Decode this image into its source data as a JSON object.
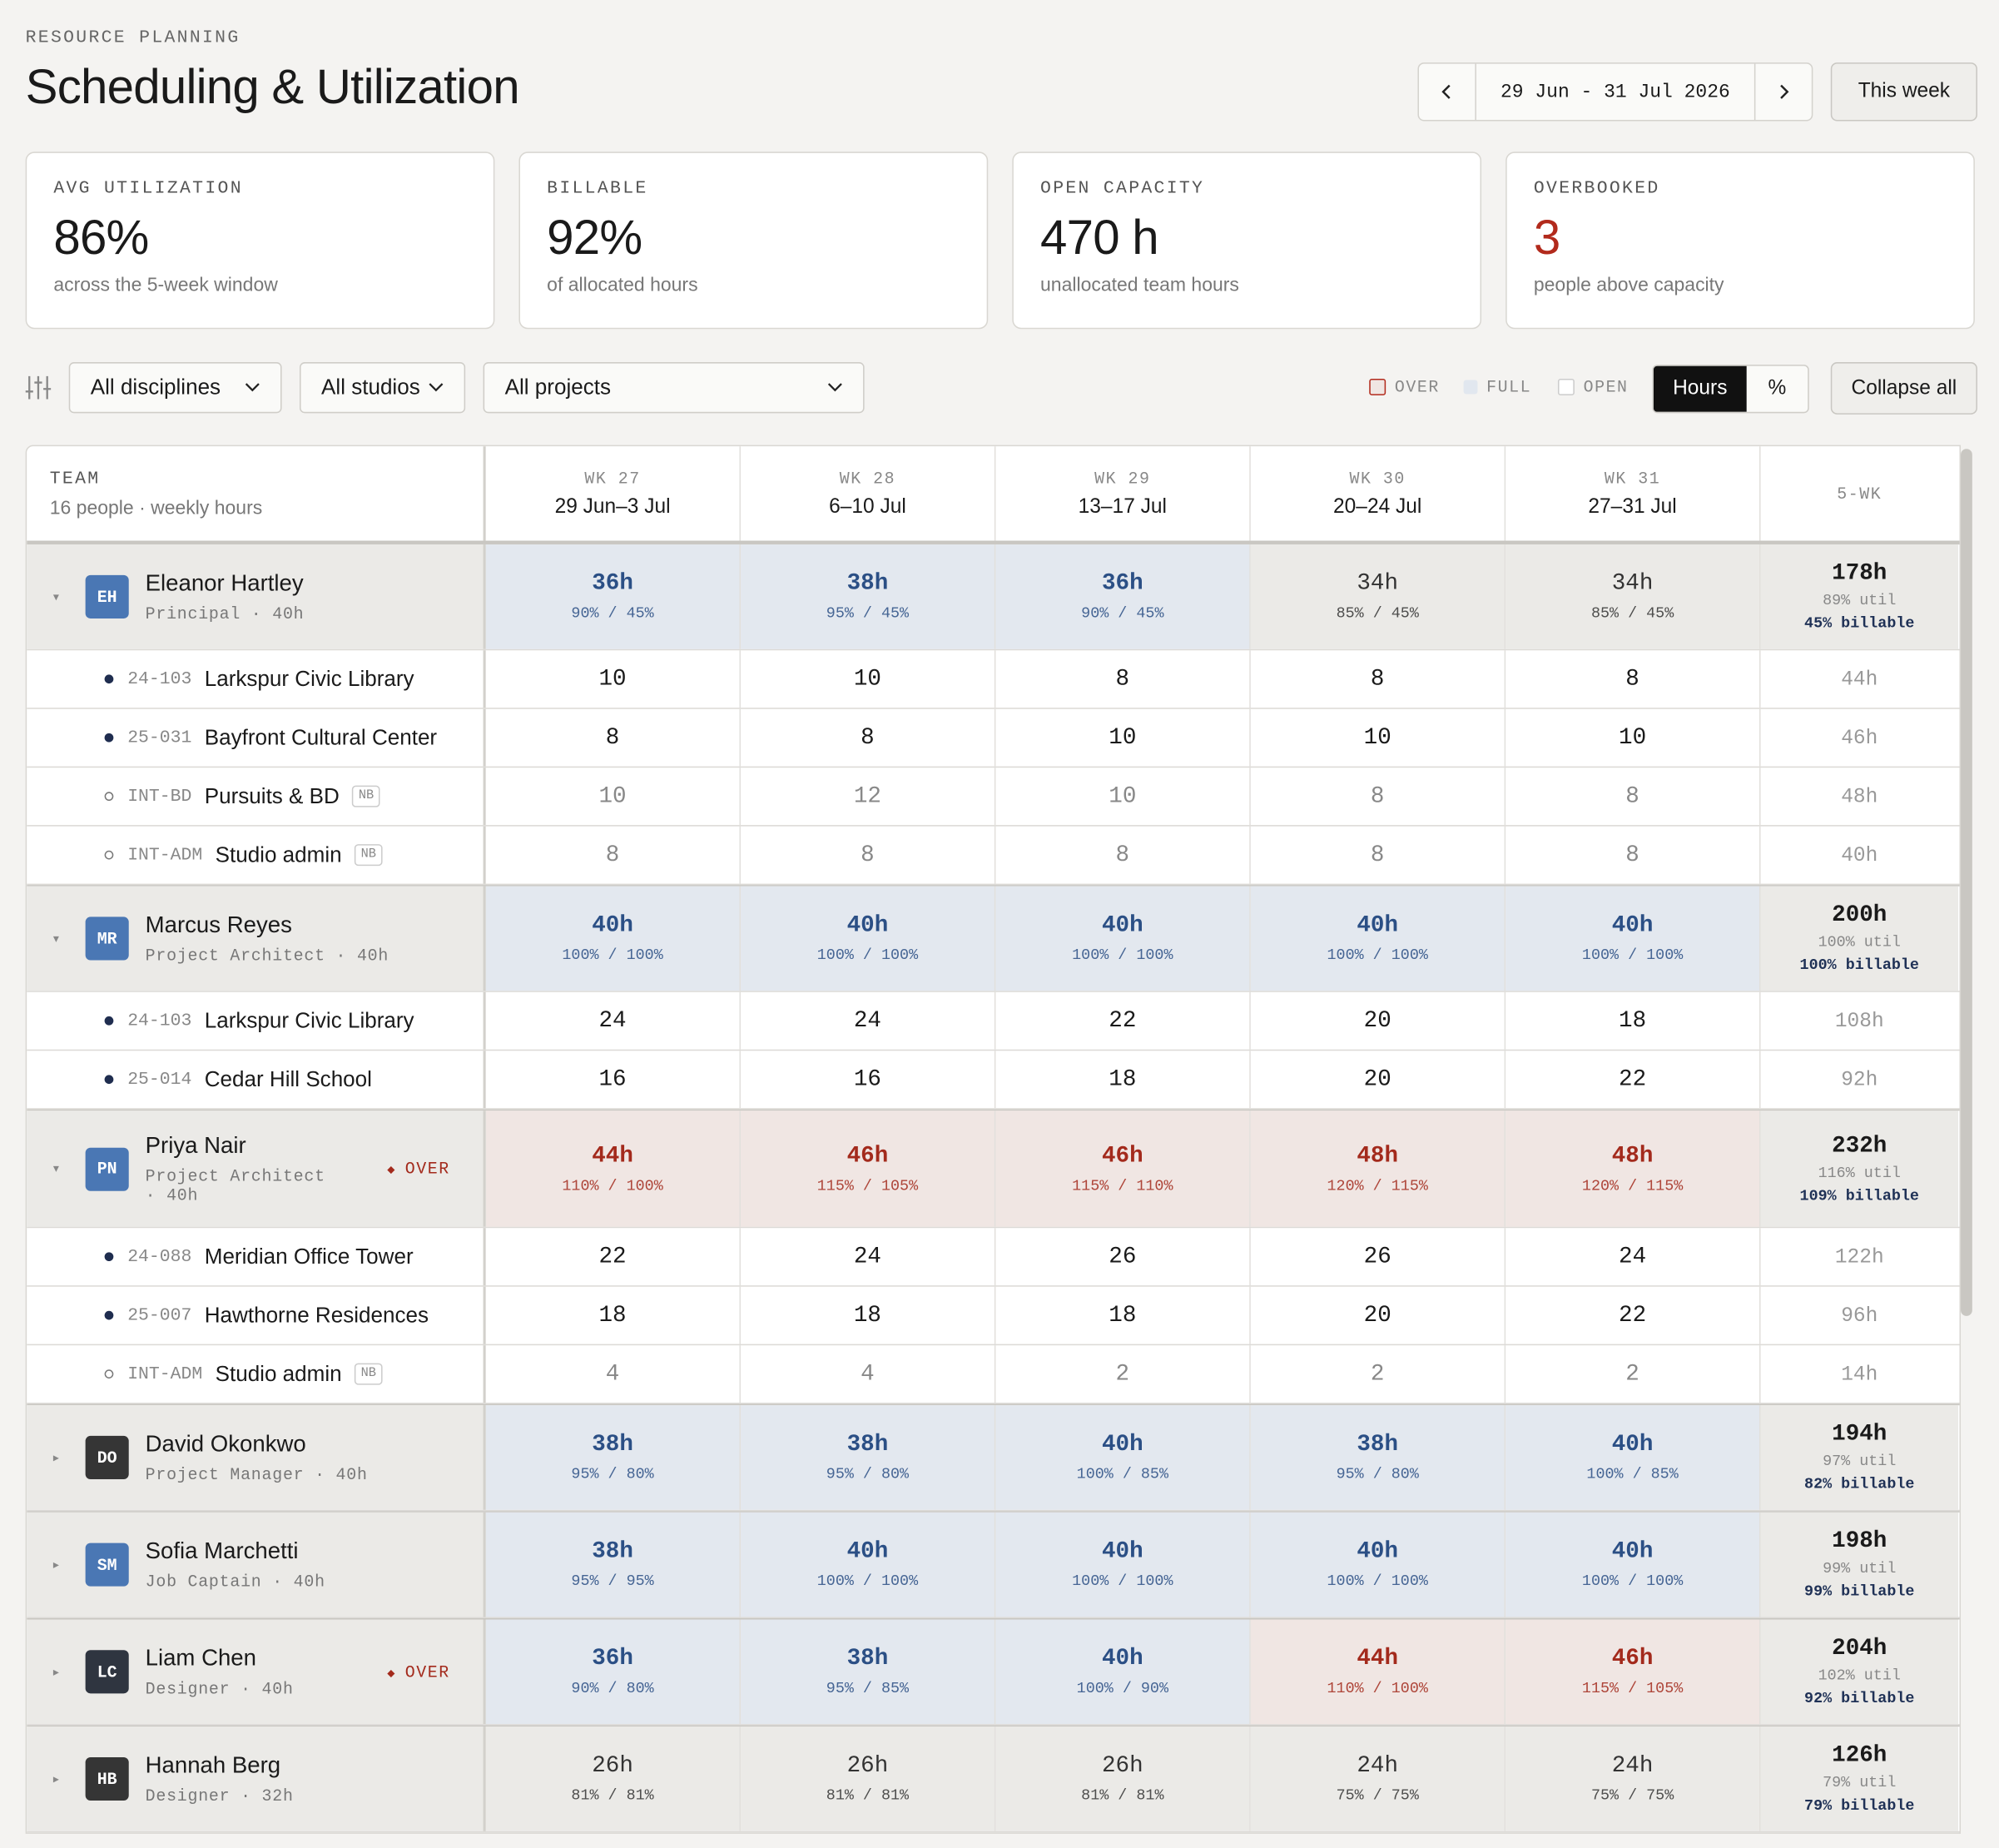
{
  "header": {
    "eyebrow": "RESOURCE PLANNING",
    "title": "Scheduling & Utilization",
    "range": "29 Jun - 31 Jul 2026",
    "this_week": "This week"
  },
  "kpis": [
    {
      "label": "AVG UTILIZATION",
      "value": "86%",
      "note": "across the 5-week window",
      "alert": false
    },
    {
      "label": "BILLABLE",
      "value": "92%",
      "note": "of allocated hours",
      "alert": false
    },
    {
      "label": "OPEN CAPACITY",
      "value": "470 h",
      "note": "unallocated team hours",
      "alert": false
    },
    {
      "label": "OVERBOOKED",
      "value": "3",
      "note": "people above capacity",
      "alert": true
    }
  ],
  "filters": {
    "disciplines": "All disciplines",
    "studios": "All studios",
    "projects": "All projects",
    "legend": [
      "OVER",
      "FULL",
      "OPEN"
    ],
    "toggle": [
      "Hours",
      "%"
    ],
    "active_toggle": 0,
    "collapse": "Collapse all"
  },
  "table": {
    "team_label": "TEAM",
    "team_sub": "16 people · weekly hours",
    "total_label": "5-WK",
    "weeks": [
      {
        "wk": "WK 27",
        "dates": "29 Jun–3 Jul"
      },
      {
        "wk": "WK 28",
        "dates": "6–10 Jul"
      },
      {
        "wk": "WK 29",
        "dates": "13–17 Jul"
      },
      {
        "wk": "WK 30",
        "dates": "20–24 Jul"
      },
      {
        "wk": "WK 31",
        "dates": "27–31 Jul"
      }
    ],
    "people": [
      {
        "initials": "EH",
        "avatar": "#4a77b4",
        "name": "Eleanor Hartley",
        "role": "Principal · 40h",
        "expanded": true,
        "weeks": [
          {
            "hours": "36h",
            "pct": "90% / 45%",
            "status": "full"
          },
          {
            "hours": "38h",
            "pct": "95% / 45%",
            "status": "full"
          },
          {
            "hours": "36h",
            "pct": "90% / 45%",
            "status": "full"
          },
          {
            "hours": "34h",
            "pct": "85% / 45%",
            "status": "open"
          },
          {
            "hours": "34h",
            "pct": "85% / 45%",
            "status": "open"
          }
        ],
        "total": {
          "hours": "178h",
          "util": "89% util",
          "billable": "45% billable"
        },
        "projects": [
          {
            "code": "24-103",
            "name": "Larkspur Civic Library",
            "billable": true,
            "hours": [
              "10",
              "10",
              "8",
              "8",
              "8"
            ],
            "total": "44h"
          },
          {
            "code": "25-031",
            "name": "Bayfront Cultural Center",
            "billable": true,
            "hours": [
              "8",
              "8",
              "10",
              "10",
              "10"
            ],
            "total": "46h"
          },
          {
            "code": "INT-BD",
            "name": "Pursuits & BD",
            "tag": "NB",
            "billable": false,
            "hours": [
              "10",
              "12",
              "10",
              "8",
              "8"
            ],
            "total": "48h"
          },
          {
            "code": "INT-ADM",
            "name": "Studio admin",
            "tag": "NB",
            "billable": false,
            "hours": [
              "8",
              "8",
              "8",
              "8",
              "8"
            ],
            "total": "40h"
          }
        ]
      },
      {
        "initials": "MR",
        "avatar": "#4a77b4",
        "name": "Marcus Reyes",
        "role": "Project Architect · 40h",
        "expanded": true,
        "weeks": [
          {
            "hours": "40h",
            "pct": "100% / 100%",
            "status": "full"
          },
          {
            "hours": "40h",
            "pct": "100% / 100%",
            "status": "full"
          },
          {
            "hours": "40h",
            "pct": "100% / 100%",
            "status": "full"
          },
          {
            "hours": "40h",
            "pct": "100% / 100%",
            "status": "full"
          },
          {
            "hours": "40h",
            "pct": "100% / 100%",
            "status": "full"
          }
        ],
        "total": {
          "hours": "200h",
          "util": "100% util",
          "billable": "100% billable"
        },
        "projects": [
          {
            "code": "24-103",
            "name": "Larkspur Civic Library",
            "billable": true,
            "hours": [
              "24",
              "24",
              "22",
              "20",
              "18"
            ],
            "total": "108h"
          },
          {
            "code": "25-014",
            "name": "Cedar Hill School",
            "billable": true,
            "hours": [
              "16",
              "16",
              "18",
              "20",
              "22"
            ],
            "total": "92h"
          }
        ]
      },
      {
        "initials": "PN",
        "avatar": "#4a77b4",
        "name": "Priya Nair",
        "role": "Project Architect · 40h",
        "flag": "OVER",
        "expanded": true,
        "weeks": [
          {
            "hours": "44h",
            "pct": "110% / 100%",
            "status": "over"
          },
          {
            "hours": "46h",
            "pct": "115% / 105%",
            "status": "over"
          },
          {
            "hours": "46h",
            "pct": "115% / 110%",
            "status": "over"
          },
          {
            "hours": "48h",
            "pct": "120% / 115%",
            "status": "over"
          },
          {
            "hours": "48h",
            "pct": "120% / 115%",
            "status": "over"
          }
        ],
        "total": {
          "hours": "232h",
          "util": "116% util",
          "billable": "109% billable"
        },
        "projects": [
          {
            "code": "24-088",
            "name": "Meridian Office Tower",
            "billable": true,
            "hours": [
              "22",
              "24",
              "26",
              "26",
              "24"
            ],
            "total": "122h"
          },
          {
            "code": "25-007",
            "name": "Hawthorne Residences",
            "billable": true,
            "hours": [
              "18",
              "18",
              "18",
              "20",
              "22"
            ],
            "total": "96h"
          },
          {
            "code": "INT-ADM",
            "name": "Studio admin",
            "tag": "NB",
            "billable": false,
            "hours": [
              "4",
              "4",
              "2",
              "2",
              "2"
            ],
            "total": "14h"
          }
        ]
      },
      {
        "initials": "DO",
        "avatar": "#353535",
        "name": "David Okonkwo",
        "role": "Project Manager · 40h",
        "expanded": false,
        "weeks": [
          {
            "hours": "38h",
            "pct": "95% / 80%",
            "status": "full"
          },
          {
            "hours": "38h",
            "pct": "95% / 80%",
            "status": "full"
          },
          {
            "hours": "40h",
            "pct": "100% / 85%",
            "status": "full"
          },
          {
            "hours": "38h",
            "pct": "95% / 80%",
            "status": "full"
          },
          {
            "hours": "40h",
            "pct": "100% / 85%",
            "status": "full"
          }
        ],
        "total": {
          "hours": "194h",
          "util": "97% util",
          "billable": "82% billable"
        }
      },
      {
        "initials": "SM",
        "avatar": "#4a77b4",
        "name": "Sofia Marchetti",
        "role": "Job Captain · 40h",
        "expanded": false,
        "weeks": [
          {
            "hours": "38h",
            "pct": "95% / 95%",
            "status": "full"
          },
          {
            "hours": "40h",
            "pct": "100% / 100%",
            "status": "full"
          },
          {
            "hours": "40h",
            "pct": "100% / 100%",
            "status": "full"
          },
          {
            "hours": "40h",
            "pct": "100% / 100%",
            "status": "full"
          },
          {
            "hours": "40h",
            "pct": "100% / 100%",
            "status": "full"
          }
        ],
        "total": {
          "hours": "198h",
          "util": "99% util",
          "billable": "99% billable"
        }
      },
      {
        "initials": "LC",
        "avatar": "#2f3540",
        "name": "Liam Chen",
        "role": "Designer · 40h",
        "flag": "OVER",
        "expanded": false,
        "weeks": [
          {
            "hours": "36h",
            "pct": "90% / 80%",
            "status": "full"
          },
          {
            "hours": "38h",
            "pct": "95% / 85%",
            "status": "full"
          },
          {
            "hours": "40h",
            "pct": "100% / 90%",
            "status": "full"
          },
          {
            "hours": "44h",
            "pct": "110% / 100%",
            "status": "over"
          },
          {
            "hours": "46h",
            "pct": "115% / 105%",
            "status": "over"
          }
        ],
        "total": {
          "hours": "204h",
          "util": "102% util",
          "billable": "92% billable"
        }
      },
      {
        "initials": "HB",
        "avatar": "#353535",
        "name": "Hannah Berg",
        "role": "Designer · 32h",
        "expanded": false,
        "weeks": [
          {
            "hours": "26h",
            "pct": "81% / 81%",
            "status": "open"
          },
          {
            "hours": "26h",
            "pct": "81% / 81%",
            "status": "open"
          },
          {
            "hours": "26h",
            "pct": "81% / 81%",
            "status": "open"
          },
          {
            "hours": "24h",
            "pct": "75% / 75%",
            "status": "open"
          },
          {
            "hours": "24h",
            "pct": "75% / 75%",
            "status": "open"
          }
        ],
        "total": {
          "hours": "126h",
          "util": "79% util",
          "billable": "79% billable"
        }
      }
    ]
  }
}
